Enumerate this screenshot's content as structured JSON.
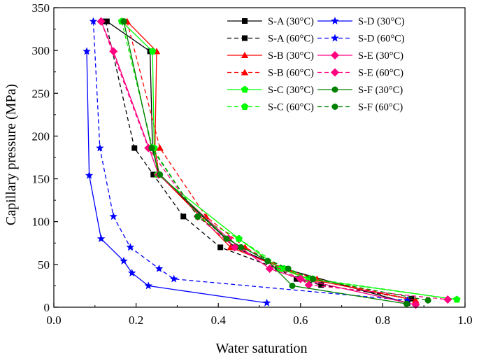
{
  "chart_data": {
    "type": "line",
    "title": "",
    "xlabel": "Water saturation",
    "ylabel": "Capillary pressure (MPa)",
    "xlim": [
      0.0,
      1.0
    ],
    "ylim": [
      0,
      350
    ],
    "xticks": [
      "0.0",
      "0.2",
      "0.4",
      "0.6",
      "0.8",
      "1.0"
    ],
    "yticks": [
      "0",
      "50",
      "100",
      "150",
      "200",
      "250",
      "300",
      "350"
    ],
    "legend_position": "top-right",
    "series": [
      {
        "name": "S-A (30°C)",
        "color": "#000000",
        "dash": "solid",
        "marker": "square",
        "x": [
          0.129,
          0.234,
          0.24,
          0.255,
          0.44,
          0.56,
          0.86
        ],
        "y": [
          334,
          299,
          186,
          155,
          70,
          45,
          5
        ]
      },
      {
        "name": "S-A (60°C)",
        "color": "#000000",
        "dash": "dashed",
        "marker": "square",
        "x": [
          0.126,
          0.196,
          0.242,
          0.315,
          0.405,
          0.545,
          0.59,
          0.65,
          0.87
        ],
        "y": [
          334,
          186,
          155,
          106,
          70,
          45,
          33,
          26,
          10
        ]
      },
      {
        "name": "S-B (30°C)",
        "color": "#ff0000",
        "dash": "solid",
        "marker": "triangle",
        "x": [
          0.178,
          0.25,
          0.246,
          0.256,
          0.43,
          0.56,
          0.62,
          0.88
        ],
        "y": [
          334,
          299,
          186,
          155,
          70,
          45,
          33,
          8
        ]
      },
      {
        "name": "S-B (60°C)",
        "color": "#ff0000",
        "dash": "dashed",
        "marker": "triangle",
        "x": [
          0.178,
          0.258,
          0.37,
          0.465,
          0.56,
          0.64,
          0.88
        ],
        "y": [
          334,
          186,
          106,
          70,
          45,
          33,
          8
        ]
      },
      {
        "name": "S-C (30°C)",
        "color": "#00ff00",
        "dash": "solid",
        "marker": "pentagon",
        "x": [
          0.165,
          0.24,
          0.244,
          0.252,
          0.45,
          0.55,
          0.62,
          0.98
        ],
        "y": [
          334,
          299,
          186,
          155,
          80,
          45,
          33,
          9
        ]
      },
      {
        "name": "S-C (60°C)",
        "color": "#00ff00",
        "dash": "dashed",
        "marker": "pentagon",
        "x": [
          0.165,
          0.24,
          0.35,
          0.45,
          0.56,
          0.63,
          0.98
        ],
        "y": [
          334,
          186,
          106,
          80,
          45,
          33,
          9
        ]
      },
      {
        "name": "S-D (30°C)",
        "color": "#0000ff",
        "dash": "solid",
        "marker": "star",
        "x": [
          0.08,
          0.086,
          0.115,
          0.17,
          0.19,
          0.23,
          0.518
        ],
        "y": [
          299,
          154,
          80,
          54,
          40,
          25,
          5
        ]
      },
      {
        "name": "S-D (60°C)",
        "color": "#0000ff",
        "dash": "dashed",
        "marker": "star",
        "x": [
          0.096,
          0.112,
          0.145,
          0.186,
          0.256,
          0.292,
          0.86
        ],
        "y": [
          334,
          186,
          106,
          70,
          45,
          33,
          8
        ]
      },
      {
        "name": "S-E (30°C)",
        "color": "#ff0080",
        "dash": "solid",
        "marker": "diamond",
        "x": [
          0.115,
          0.145,
          0.255,
          0.425,
          0.525,
          0.6,
          0.88
        ],
        "y": [
          334,
          299,
          155,
          80,
          45,
          33,
          3
        ]
      },
      {
        "name": "S-E (60°C)",
        "color": "#ff0080",
        "dash": "dashed",
        "marker": "diamond",
        "x": [
          0.115,
          0.23,
          0.35,
          0.44,
          0.6,
          0.62,
          0.958
        ],
        "y": [
          334,
          186,
          106,
          70,
          33,
          26,
          9
        ]
      },
      {
        "name": "S-F (30°C)",
        "color": "#008000",
        "dash": "solid",
        "marker": "circle",
        "x": [
          0.17,
          0.238,
          0.258,
          0.42,
          0.52,
          0.58,
          0.858
        ],
        "y": [
          334,
          186,
          155,
          80,
          54,
          25,
          4
        ]
      },
      {
        "name": "S-F (60°C)",
        "color": "#008000",
        "dash": "dashed",
        "marker": "circle",
        "x": [
          0.17,
          0.238,
          0.35,
          0.455,
          0.57,
          0.63,
          0.91
        ],
        "y": [
          334,
          186,
          106,
          70,
          45,
          33,
          8
        ]
      }
    ]
  }
}
